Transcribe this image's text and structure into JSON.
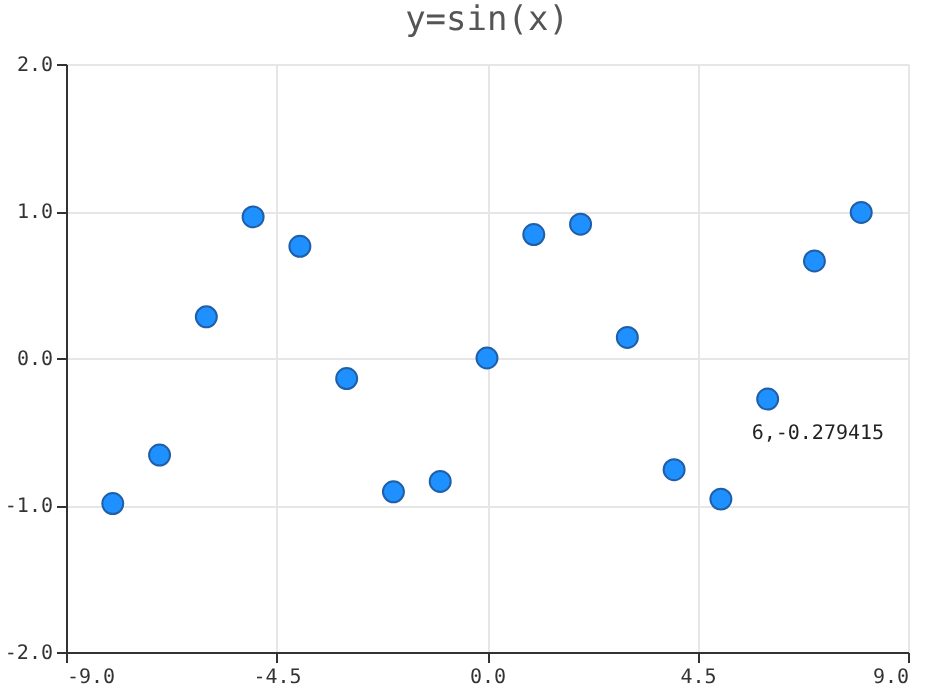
{
  "chart_data": {
    "type": "scatter",
    "title": "y=sin(x)",
    "x": [
      -8,
      -7,
      -6,
      -5,
      -4,
      -3,
      -2,
      -1,
      0,
      1,
      2,
      3,
      4,
      5,
      6,
      7,
      8
    ],
    "series": [
      {
        "color": "#1e90ff",
        "values": [
          -0.99,
          -0.66,
          0.28,
          0.96,
          0.76,
          -0.14,
          -0.91,
          -0.84,
          0,
          0.84,
          0.91,
          0.14,
          -0.76,
          -0.96,
          -0.279415,
          0.66,
          0.99
        ]
      }
    ],
    "xlim": [
      -9,
      9
    ],
    "xticks": [
      {
        "value": -9,
        "label": "-9.0"
      },
      {
        "value": -4.5,
        "label": "-4.5"
      },
      {
        "value": 0,
        "label": "0.0"
      },
      {
        "value": 4.5,
        "label": "4.5"
      },
      {
        "value": 9,
        "label": "9.0"
      }
    ],
    "ylim": [
      -2,
      2
    ],
    "yticks": [
      {
        "value": -2,
        "label": "-2.0"
      },
      {
        "value": -1,
        "label": "-1.0"
      },
      {
        "value": 0,
        "label": "0.0"
      },
      {
        "value": 1,
        "label": "1.0"
      },
      {
        "value": 2,
        "label": "2.0"
      }
    ],
    "grid": true,
    "marker": "circle",
    "annotations": [
      {
        "text": "6,-0.279415",
        "x": 6,
        "y": -0.279415
      }
    ]
  }
}
